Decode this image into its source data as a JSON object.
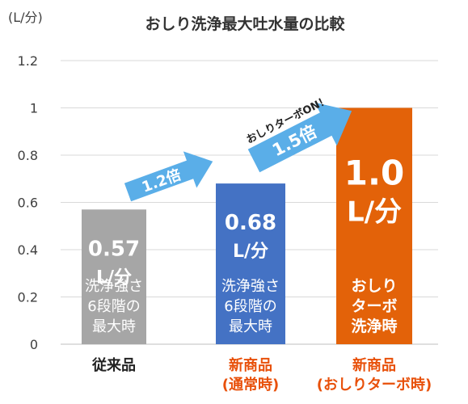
{
  "chart_data": {
    "type": "bar",
    "title": "おしり洗浄最大吐水量の比較",
    "ylabel": "(L/分)",
    "ylim": [
      0,
      1.2
    ],
    "yticks": [
      "0",
      "0.2",
      "0.4",
      "0.6",
      "0.8",
      "1",
      "1.2"
    ],
    "grid": true,
    "categories": [
      {
        "lines": [
          "従来品"
        ],
        "color": "#222222"
      },
      {
        "lines": [
          "新商品",
          "(通常時)"
        ],
        "color": "#e8500a"
      },
      {
        "lines": [
          "新商品",
          "(おしりターボ時)"
        ],
        "color": "#e8500a"
      }
    ],
    "values": [
      0.57,
      0.68,
      1.0
    ],
    "bar_colors": [
      "#a6a6a6",
      "#4472c4",
      "#e36209"
    ],
    "value_labels": [
      [
        "0.57",
        "L/分"
      ],
      [
        "0.68",
        "L/分"
      ],
      [
        "1.0",
        "L/分"
      ]
    ],
    "bar_notes": [
      [
        "洗浄強さ",
        "6段階の",
        "最大時"
      ],
      [
        "洗浄強さ",
        "6段階の",
        "最大時"
      ],
      [
        "おしり",
        "ターボ",
        "洗浄時"
      ]
    ],
    "annotations": {
      "arrow1": "1.2倍",
      "arrow2": "1.5倍",
      "turbo_note": "おしりターボON！"
    },
    "arrow_color": "#5aaee8"
  }
}
